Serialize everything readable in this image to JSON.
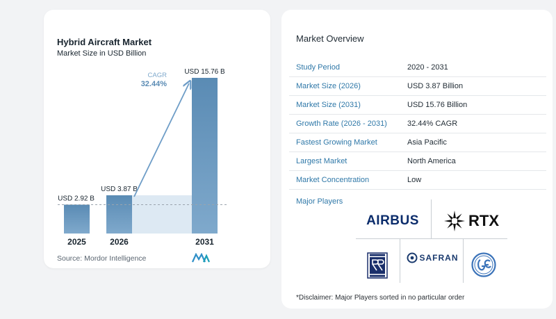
{
  "left_card": {
    "title": "Hybrid Aircraft Market",
    "subtitle": "Market Size in USD Billion",
    "source": "Source:  Mordor Intelligence",
    "brand_logo_icon": "mordor-intelligence-logo"
  },
  "chart_data": {
    "type": "bar",
    "title": "Hybrid Aircraft Market",
    "subtitle": "Market Size in USD Billion",
    "categories": [
      "2025",
      "2026",
      "2031"
    ],
    "values": [
      2.92,
      3.87,
      15.76
    ],
    "value_labels": [
      "USD 2.92 B",
      "USD 3.87 B",
      "USD 15.76 B"
    ],
    "cagr_label": "CAGR",
    "cagr_value": "32.44%",
    "bar_color_start": "#7fa9cc",
    "bar_color_end": "#4d7fa9",
    "band_color": "#dde9f3",
    "arrow_color": "#6e9dc7",
    "ylim": [
      0,
      17
    ]
  },
  "overview": {
    "title": "Market Overview",
    "rows": [
      {
        "key": "Study Period",
        "value": "2020 - 2031"
      },
      {
        "key": "Market Size (2026)",
        "value": "USD 3.87 Billion"
      },
      {
        "key": "Market Size (2031)",
        "value": "USD 15.76 Billion"
      },
      {
        "key": "Growth Rate (2026 - 2031)",
        "value": "32.44% CAGR"
      },
      {
        "key": "Fastest Growing Market",
        "value": "Asia Pacific"
      },
      {
        "key": "Largest Market",
        "value": "North America"
      },
      {
        "key": "Market Concentration",
        "value": "Low"
      }
    ],
    "key_color": "#2f78a8",
    "players_label": "Major Players",
    "players": {
      "airbus": "AIRBUS",
      "rtx": "RTX",
      "safran": "SAFRAN"
    },
    "player_logo_icons": [
      "airbus-logo",
      "rtx-logo",
      "rolls-royce-logo",
      "safran-logo",
      "ge-logo"
    ],
    "disclaimer": "*Disclaimer: Major Players sorted in no particular order"
  }
}
